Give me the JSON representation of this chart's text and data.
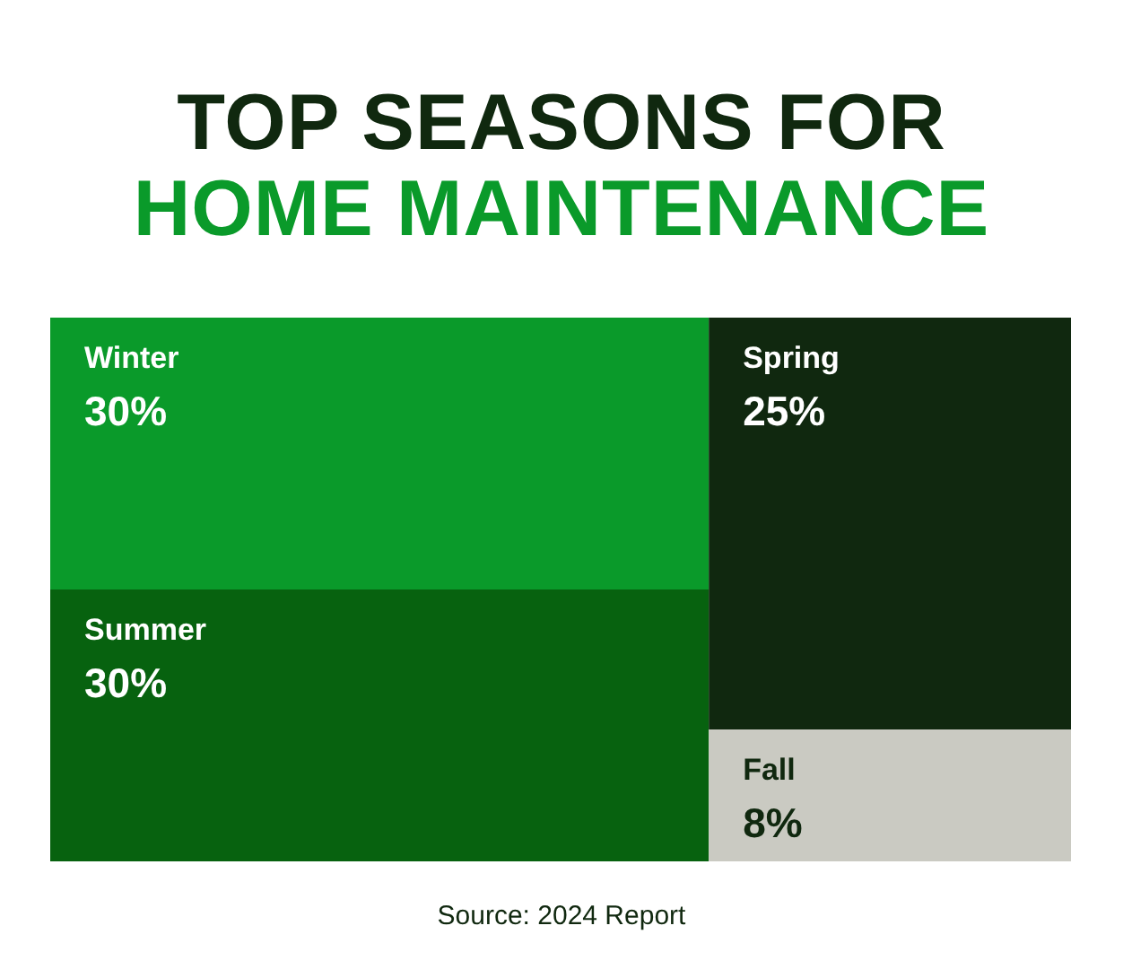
{
  "chart_data": {
    "type": "other",
    "title": "TOP SEASONS FOR",
    "subtitle": "HOME MAINTENANCE",
    "categories": [
      "Winter",
      "Summer",
      "Spring",
      "Fall"
    ],
    "values": [
      30,
      30,
      25,
      8
    ],
    "value_labels": [
      "30%",
      "30%",
      "25%",
      "8%"
    ],
    "colors": [
      "#0a9a2a",
      "#07620f",
      "#10280f",
      "#cacac2"
    ],
    "annotations": [
      "Source: 2024 Report"
    ]
  }
}
